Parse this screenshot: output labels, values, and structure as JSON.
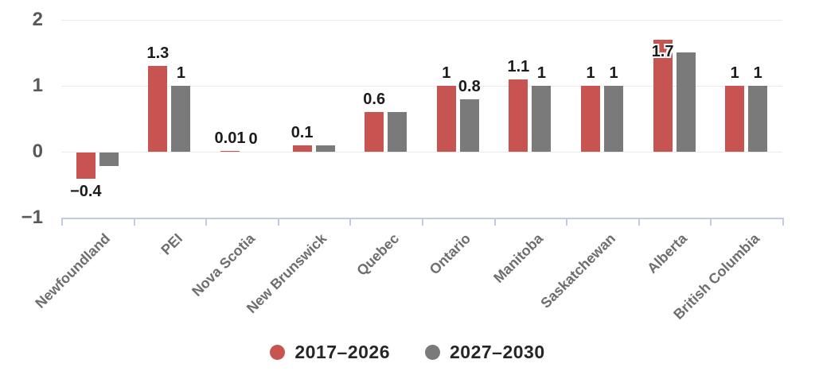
{
  "chart_data": {
    "type": "bar",
    "title": "",
    "xlabel": "",
    "ylabel": "",
    "categories": [
      "Newfoundland",
      "PEI",
      "Nova Scotia",
      "New Brunswick",
      "Quebec",
      "Ontario",
      "Manitoba",
      "Saskatchewan",
      "Alberta",
      "British Columbia"
    ],
    "series": [
      {
        "name": "2017–2026",
        "color": "#c75450",
        "values": [
          -0.4,
          1.3,
          0.01,
          0.1,
          0.6,
          1,
          1.1,
          1,
          1.7,
          1
        ],
        "labels": [
          "−0.4",
          "1.3",
          "0.01",
          "0.1",
          "0.6",
          "1",
          "1.1",
          "1",
          "1.7",
          "1"
        ]
      },
      {
        "name": "2027–2030",
        "color": "#7a7a7a",
        "values": [
          -0.2,
          1,
          0,
          0.1,
          0.6,
          0.8,
          1,
          1,
          1.5,
          1
        ],
        "labels": [
          "",
          "1",
          "0",
          "",
          "",
          "0.8",
          "1",
          "1",
          "",
          "1"
        ]
      }
    ],
    "ylim": [
      -1,
      2
    ],
    "yticks": [
      {
        "label": "2",
        "value": 2
      },
      {
        "label": "1",
        "value": 1
      },
      {
        "label": "0",
        "value": 0
      },
      {
        "label": "−1",
        "value": -1
      }
    ],
    "grid": "horizontal",
    "legend_position": "bottom"
  },
  "colors": {
    "background": "#ffffff",
    "gridline": "#eaeaea",
    "axis": "#c2cbdf",
    "ytick_label": "#595959",
    "category_label": "#6e6e6e",
    "value_label": "#1c1c1c",
    "series_red": "#c75450",
    "series_gray": "#7a7a7a"
  }
}
